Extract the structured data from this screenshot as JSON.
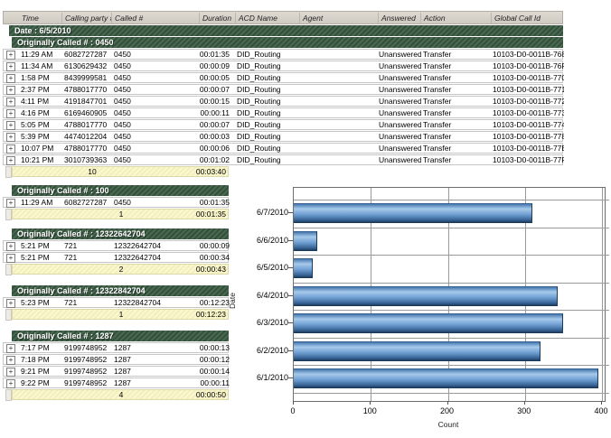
{
  "columns": {
    "time": "Time",
    "calling": "Calling party #",
    "called": "Called #",
    "duration": "Duration",
    "acd": "ACD Name",
    "agent": "Agent",
    "answered": "Answered",
    "action": "Action",
    "gcid": "Global Call Id"
  },
  "date_header": "Date : 6/5/2010",
  "groups": [
    {
      "title": "Originally Called # : 0450",
      "rows": [
        {
          "time": "11:29 AM",
          "calling": "6082727287",
          "called": "0450",
          "duration": "00:01:35",
          "acd": "DID_Routing",
          "agent": "",
          "answered": "Unanswered",
          "action": "Transfer",
          "gcid": "10103-D0-0011B-768"
        },
        {
          "time": "11:34 AM",
          "calling": "6130629432",
          "called": "0450",
          "duration": "00:00:09",
          "acd": "DID_Routing",
          "agent": "",
          "answered": "Unanswered",
          "action": "Transfer",
          "gcid": "10103-D0-0011B-76F"
        },
        {
          "time": "1:58 PM",
          "calling": "8439999581",
          "called": "0450",
          "duration": "00:00:05",
          "acd": "DID_Routing",
          "agent": "",
          "answered": "Unanswered",
          "action": "Transfer",
          "gcid": "10103-D0-0011B-770"
        },
        {
          "time": "2:37 PM",
          "calling": "4788017770",
          "called": "0450",
          "duration": "00:00:07",
          "acd": "DID_Routing",
          "agent": "",
          "answered": "Unanswered",
          "action": "Transfer",
          "gcid": "10103-D0-0011B-771"
        },
        {
          "time": "4:11 PM",
          "calling": "4191847701",
          "called": "0450",
          "duration": "00:00:15",
          "acd": "DID_Routing",
          "agent": "",
          "answered": "Unanswered",
          "action": "Transfer",
          "gcid": "10103-D0-0011B-772"
        },
        {
          "time": "4:16 PM",
          "calling": "6169460905",
          "called": "0450",
          "duration": "00:00:11",
          "acd": "DID_Routing",
          "agent": "",
          "answered": "Unanswered",
          "action": "Transfer",
          "gcid": "10103-D0-0011B-773"
        },
        {
          "time": "5:05 PM",
          "calling": "4788017770",
          "called": "0450",
          "duration": "00:00:07",
          "acd": "DID_Routing",
          "agent": "",
          "answered": "Unanswered",
          "action": "Transfer",
          "gcid": "10103-D0-0011B-774"
        },
        {
          "time": "5:39 PM",
          "calling": "4474012204",
          "called": "0450",
          "duration": "00:00:03",
          "acd": "DID_Routing",
          "agent": "",
          "answered": "Unanswered",
          "action": "Transfer",
          "gcid": "10103-D0-0011B-778"
        },
        {
          "time": "10:07 PM",
          "calling": "4788017770",
          "called": "0450",
          "duration": "00:00:06",
          "acd": "DID_Routing",
          "agent": "",
          "answered": "Unanswered",
          "action": "Transfer",
          "gcid": "10103-D0-0011B-77E"
        },
        {
          "time": "10:21 PM",
          "calling": "3010739363",
          "called": "0450",
          "duration": "00:01:02",
          "acd": "DID_Routing",
          "agent": "",
          "answered": "Unanswered",
          "action": "Transfer",
          "gcid": "10103-D0-0011B-77F"
        }
      ],
      "summary": {
        "count": "10",
        "total": "00:03:40"
      }
    },
    {
      "title": "Originally Called # : 100",
      "rows": [
        {
          "time": "11:29 AM",
          "calling": "6082727287",
          "called": "0450",
          "duration": "00:01:35"
        }
      ],
      "summary": {
        "count": "1",
        "total": "00:01:35"
      }
    },
    {
      "title": "Originally Called # : 12322642704",
      "rows": [
        {
          "time": "5:21 PM",
          "calling": "721",
          "called": "12322642704",
          "duration": "00:00:09"
        },
        {
          "time": "5:21 PM",
          "calling": "721",
          "called": "12322642704",
          "duration": "00:00:34"
        }
      ],
      "summary": {
        "count": "2",
        "total": "00:00:43"
      }
    },
    {
      "title": "Originally Called # : 12322842704",
      "rows": [
        {
          "time": "5:23 PM",
          "calling": "721",
          "called": "12322842704",
          "duration": "00:12:23"
        }
      ],
      "summary": {
        "count": "1",
        "total": "00:12:23"
      }
    },
    {
      "title": "Originally Called # : 1287",
      "rows": [
        {
          "time": "7:17 PM",
          "calling": "9199748952",
          "called": "1287",
          "duration": "00:00:13"
        },
        {
          "time": "7:18 PM",
          "calling": "9199748952",
          "called": "1287",
          "duration": "00:00:12"
        },
        {
          "time": "9:21 PM",
          "calling": "9199748952",
          "called": "1287",
          "duration": "00:00:14"
        },
        {
          "time": "9:22 PM",
          "calling": "9199748952",
          "called": "1287",
          "duration": "00:00:11"
        }
      ],
      "summary": {
        "count": "4",
        "total": "00:00:50"
      }
    }
  ],
  "chart_data": {
    "type": "bar",
    "orientation": "horizontal",
    "categories": [
      "6/7/2010",
      "6/6/2010",
      "6/5/2010",
      "6/4/2010",
      "6/3/2010",
      "6/2/2010",
      "6/1/2010"
    ],
    "values": [
      310,
      31,
      25,
      342,
      349,
      320,
      395
    ],
    "xlabel": "Count",
    "ylabel": "Date",
    "xlim": [
      0,
      405
    ],
    "xticks": [
      0,
      100,
      200,
      300,
      400
    ],
    "grid": true,
    "bar_color": "#5b8fc9"
  }
}
